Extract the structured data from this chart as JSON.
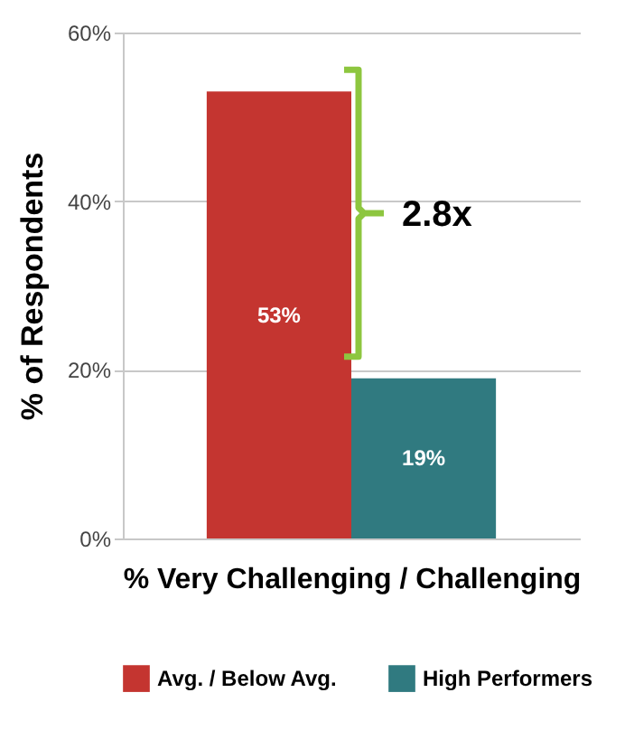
{
  "chart_data": {
    "type": "bar",
    "xlabel": "%  Very Challenging / Challenging",
    "ylabel": "% of Respondents",
    "categories": [
      null
    ],
    "series": [
      {
        "name": "Avg. / Below Avg.",
        "color": "#c43530",
        "values": [
          53
        ],
        "value_labels": [
          "53%"
        ]
      },
      {
        "name": "High Performers",
        "color": "#307a80",
        "values": [
          19
        ],
        "value_labels": [
          "19%"
        ]
      }
    ],
    "ylim": [
      0,
      60
    ],
    "yticks": [
      {
        "value": 0,
        "label": "0%"
      },
      {
        "value": 20,
        "label": "20%"
      },
      {
        "value": 40,
        "label": "40%"
      },
      {
        "value": 60,
        "label": "60%"
      }
    ],
    "grid": "y",
    "legend": "bottom",
    "annotations": [
      "2.8x"
    ]
  }
}
